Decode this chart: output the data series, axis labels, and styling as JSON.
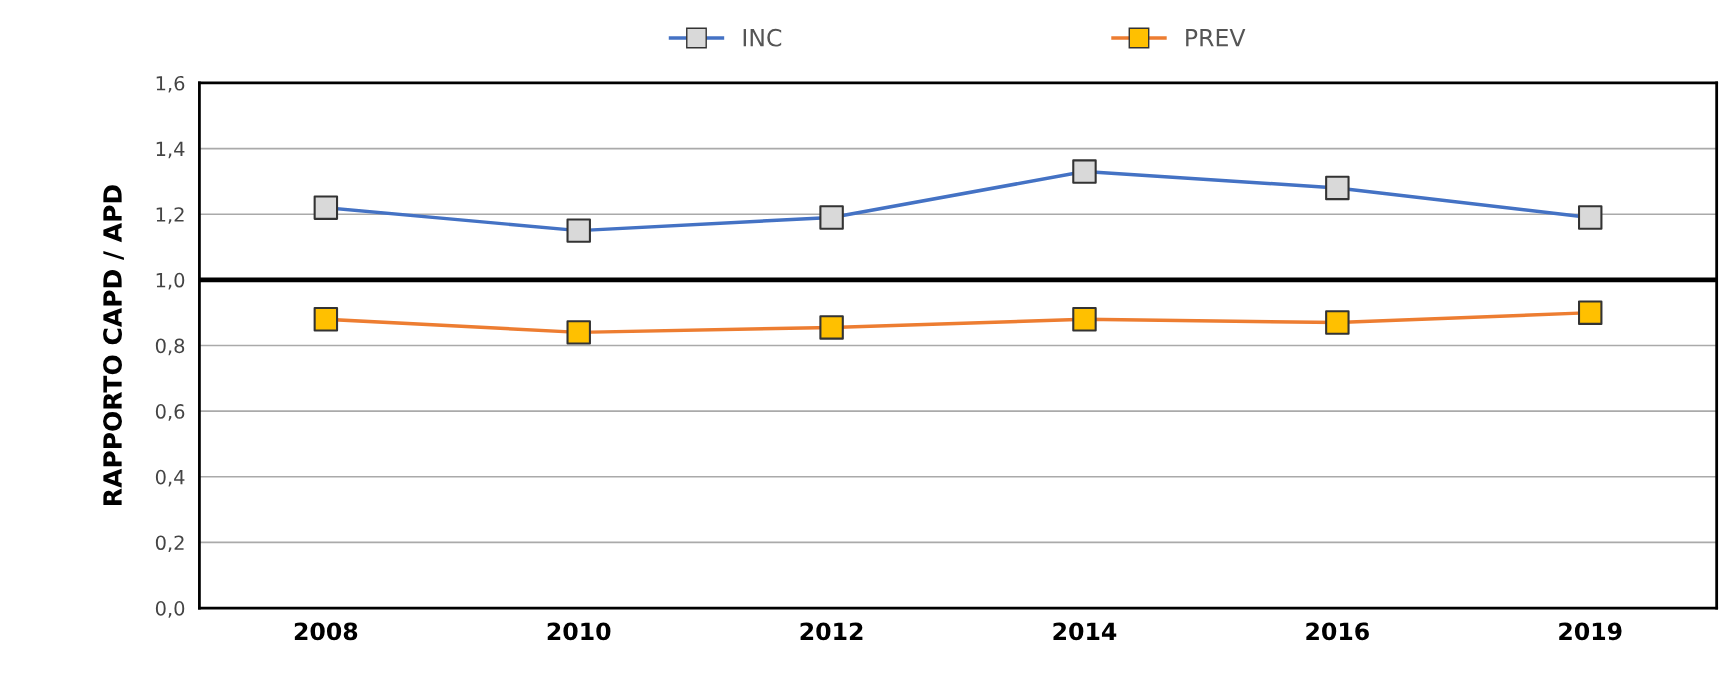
{
  "chart_data": {
    "type": "line",
    "ylabel": "RAPPORTO CAPD / APD",
    "categories": [
      "2008",
      "2010",
      "2012",
      "2014",
      "2016",
      "2019"
    ],
    "series": [
      {
        "name": "INC",
        "color": "#4472c4",
        "colors": [
          "#d9d9d9",
          "#d9d9d9",
          "#d9d9d9",
          "#d9d9d9",
          "#d9d9d9",
          "#d9d9d9"
        ],
        "values": [
          1.22,
          1.15,
          1.19,
          1.33,
          1.28,
          1.19
        ]
      },
      {
        "name": "PREV",
        "color": "#ed7d31",
        "colors": [
          "#ffc000",
          "#ffc000",
          "#ffc000",
          "#ffc000",
          "#ffc000",
          "#ffc000"
        ],
        "values": [
          0.88,
          0.84,
          0.855,
          0.88,
          0.87,
          0.9
        ]
      }
    ],
    "ylim": [
      0,
      1.6
    ],
    "yticks": [
      {
        "value": 0,
        "label": "0,0"
      },
      {
        "value": 0.2,
        "label": "0,2"
      },
      {
        "value": 0.4,
        "label": "0,4"
      },
      {
        "value": 0.6,
        "label": "0,6"
      },
      {
        "value": 0.8,
        "label": "0,8"
      },
      {
        "value": 1.0,
        "label": "1,0"
      },
      {
        "value": 1.2,
        "label": "1,2"
      },
      {
        "value": 1.4,
        "label": "1,4"
      },
      {
        "value": 1.6,
        "label": "1,6"
      }
    ],
    "ref_lines": [
      {
        "axis": "y",
        "value": 1.0,
        "color": "#000000"
      }
    ],
    "grid": "y",
    "legend": "top",
    "marker": "square",
    "line_style": "solid"
  }
}
